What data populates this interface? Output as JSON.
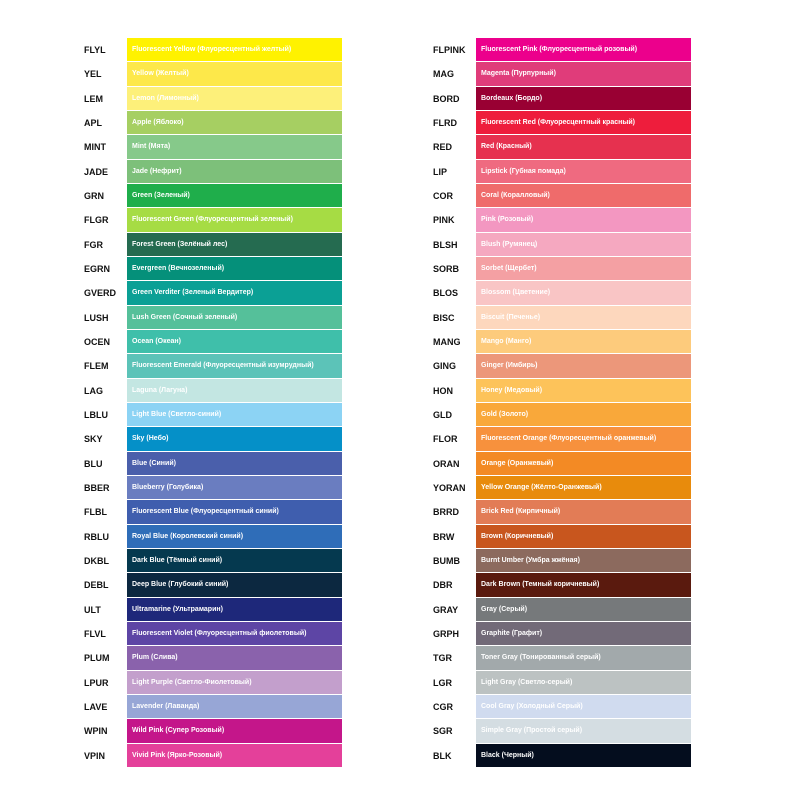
{
  "columns": [
    [
      {
        "code": "FLYL",
        "name": "Fluorescent Yellow (Флуоресцентный желтый)",
        "color": "#fff200"
      },
      {
        "code": "YEL",
        "name": "Yellow (Желтый)",
        "color": "#fde84a"
      },
      {
        "code": "LEM",
        "name": "Lemon (Лимонный)",
        "color": "#fdf07a"
      },
      {
        "code": "APL",
        "name": "Apple (Яблоко)",
        "color": "#a6cf62"
      },
      {
        "code": "MINT",
        "name": "Mint (Мята)",
        "color": "#86c98a"
      },
      {
        "code": "JADE",
        "name": "Jade (Нефрит)",
        "color": "#7dc07a"
      },
      {
        "code": "GRN",
        "name": "Green (Зеленый)",
        "color": "#1fae4b"
      },
      {
        "code": "FLGR",
        "name": "Fluorescent Green (Флуоресцентный зеленый)",
        "color": "#a6dc44"
      },
      {
        "code": "FGR",
        "name": "Forest Green (Зелёный лес)",
        "color": "#256b50"
      },
      {
        "code": "EGRN",
        "name": "Evergreen (Вечнозеленый)",
        "color": "#05907a"
      },
      {
        "code": "GVERD",
        "name": "Green Verditer (Зеленый Вердитер)",
        "color": "#0ba095"
      },
      {
        "code": "LUSH",
        "name": "Lush Green (Сочный зеленый)",
        "color": "#55c09a"
      },
      {
        "code": "OCEN",
        "name": "Ocean (Океан)",
        "color": "#3fbfaa"
      },
      {
        "code": "FLEM",
        "name": "Fluorescent Emerald (Флуоресцентный изумрудный)",
        "color": "#5cc3b8"
      },
      {
        "code": "LAG",
        "name": "Laguna (Лагуна)",
        "color": "#c3e6e2"
      },
      {
        "code": "LBLU",
        "name": "Light Blue (Светло-синий)",
        "color": "#8cd3f4"
      },
      {
        "code": "SKY",
        "name": "Sky (Небо)",
        "color": "#0590c8"
      },
      {
        "code": "BLU",
        "name": "Blue (Синий)",
        "color": "#4a5fab"
      },
      {
        "code": "BBER",
        "name": "Blueberry (Голубика)",
        "color": "#6a7dc0"
      },
      {
        "code": "FLBL",
        "name": "Fluorescent Blue (Флуоресцентный синий)",
        "color": "#3f5eae"
      },
      {
        "code": "RBLU",
        "name": "Royal Blue (Королевский синий)",
        "color": "#2f6db8"
      },
      {
        "code": "DKBL",
        "name": "Dark Blue (Тёмный синий)",
        "color": "#05394f"
      },
      {
        "code": "DEBL",
        "name": "Deep Blue (Глубокий синий)",
        "color": "#0c2840"
      },
      {
        "code": "ULT",
        "name": "Ultramarine (Ультрамарин)",
        "color": "#1e287a"
      },
      {
        "code": "FLVL",
        "name": "Fluorescent Violet (Флуоресцентный фиолетовый)",
        "color": "#5d45a5"
      },
      {
        "code": "PLUM",
        "name": "Plum (Слива)",
        "color": "#8a62ac"
      },
      {
        "code": "LPUR",
        "name": "Light Purple (Светло-Фиолетовый)",
        "color": "#c39fcc"
      },
      {
        "code": "LAVE",
        "name": "Lavender (Лаванда)",
        "color": "#97a6d6"
      },
      {
        "code": "WPIN",
        "name": "Wild Pink (Супер Розовый)",
        "color": "#c4168a"
      },
      {
        "code": "VPIN",
        "name": "Vivid Pink (Ярко-Розовый)",
        "color": "#e4409a"
      }
    ],
    [
      {
        "code": "FLPINK",
        "name": "Fluorescent Pink (Флуоресцентный розовый)",
        "color": "#ec008c"
      },
      {
        "code": "MAG",
        "name": "Magenta (Пурпурный)",
        "color": "#e03c7a"
      },
      {
        "code": "BORD",
        "name": "Bordeaux (Бордо)",
        "color": "#990033"
      },
      {
        "code": "FLRD",
        "name": "Fluorescent Red (Флуоресцентный красный)",
        "color": "#ee1d3c"
      },
      {
        "code": "RED",
        "name": "Red (Красный)",
        "color": "#e6314f"
      },
      {
        "code": "LIP",
        "name": "Lipstick (Губная помада)",
        "color": "#ef6a80"
      },
      {
        "code": "COR",
        "name": "Coral (Коралловый)",
        "color": "#ef6b6b"
      },
      {
        "code": "PINK",
        "name": "Pink (Розовый)",
        "color": "#f397c1"
      },
      {
        "code": "BLSH",
        "name": "Blush (Румянец)",
        "color": "#f5a8c0"
      },
      {
        "code": "SORB",
        "name": "Sorbet (Щербет)",
        "color": "#f4a0a3"
      },
      {
        "code": "BLOS",
        "name": "Blossom (Цветение)",
        "color": "#f9c5c5"
      },
      {
        "code": "BISC",
        "name": "Biscuit (Печенье)",
        "color": "#fdd7bd"
      },
      {
        "code": "MANG",
        "name": "Mango (Манго)",
        "color": "#fdcb7c"
      },
      {
        "code": "GING",
        "name": "Ginger (Имбирь)",
        "color": "#ec977a"
      },
      {
        "code": "HON",
        "name": "Honey (Медовый)",
        "color": "#fdc35a"
      },
      {
        "code": "GLD",
        "name": "Gold (Золото)",
        "color": "#f9a83a"
      },
      {
        "code": "FLOR",
        "name": "Fluorescent Orange (Флуоресцентный оранжевый)",
        "color": "#f7913d"
      },
      {
        "code": "ORAN",
        "name": "Orange (Оранжевый)",
        "color": "#f38a24"
      },
      {
        "code": "YORAN",
        "name": "Yellow Orange (Жёлто-Оранжевый)",
        "color": "#e88b0c"
      },
      {
        "code": "BRRD",
        "name": "Brick Red (Кирпичный)",
        "color": "#e27c56"
      },
      {
        "code": "BRW",
        "name": "Brown (Коричневый)",
        "color": "#c8561e"
      },
      {
        "code": "BUMB",
        "name": "Burnt Umber (Умбра жжёная)",
        "color": "#8c6a5e"
      },
      {
        "code": "DBR",
        "name": "Dark Brown (Темный коричневый)",
        "color": "#5a1a0e"
      },
      {
        "code": "GRAY",
        "name": "Gray (Серый)",
        "color": "#76797b"
      },
      {
        "code": "GRPH",
        "name": "Graphite (Графит)",
        "color": "#726a78"
      },
      {
        "code": "TGR",
        "name": "Toner Gray (Тонированный серый)",
        "color": "#a2a9ab"
      },
      {
        "code": "LGR",
        "name": "Light Gray (Светло-серый)",
        "color": "#bcc2c2"
      },
      {
        "code": "CGR",
        "name": "Cool Gray (Холодный Серый)",
        "color": "#d0dbef"
      },
      {
        "code": "SGR",
        "name": "Simple Gray (Простой серый)",
        "color": "#d4dde2"
      },
      {
        "code": "BLK",
        "name": "Black (Черный)",
        "color": "#040d1e"
      }
    ]
  ]
}
